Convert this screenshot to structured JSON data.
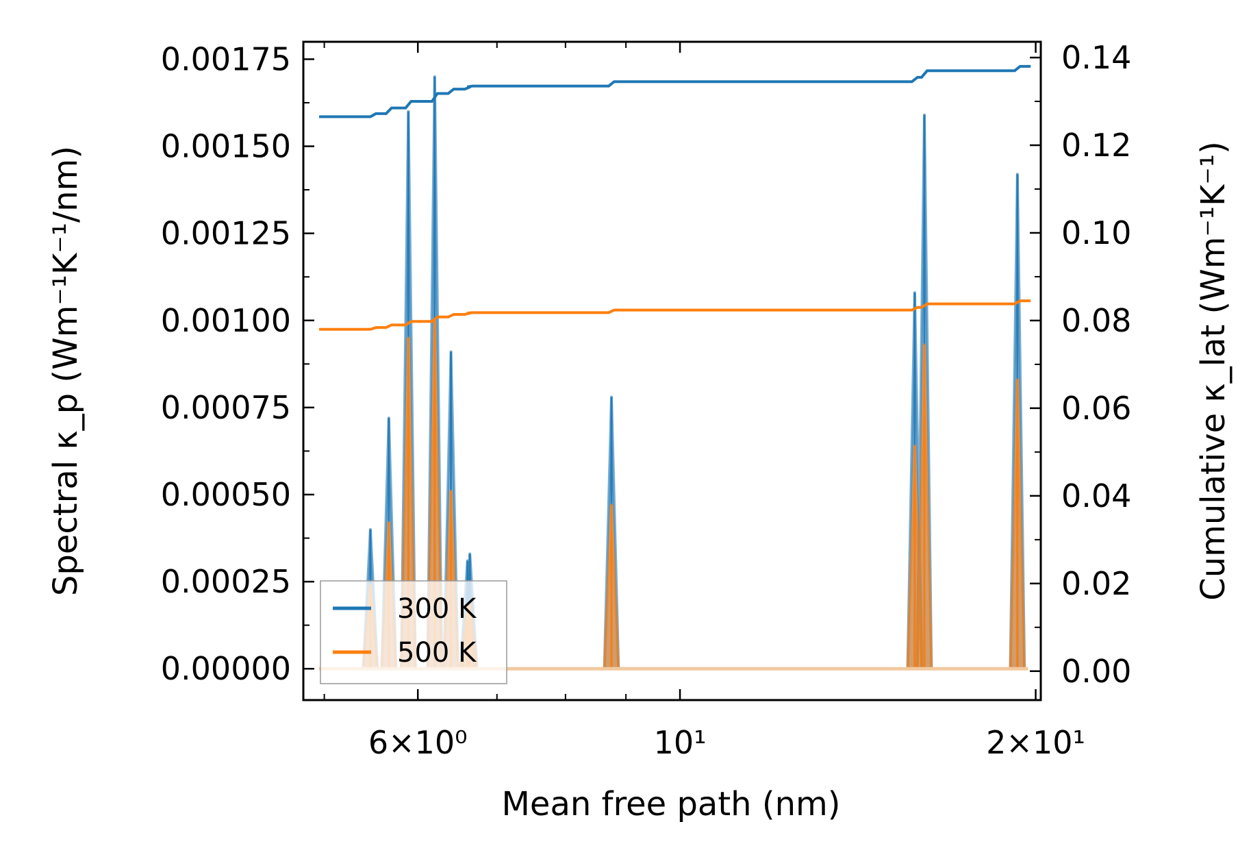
{
  "chart_data": {
    "type": "line",
    "title": "",
    "xlabel": "Mean free path (nm)",
    "ylabel": "Spectral κ_p (Wm⁻¹K⁻¹/nm)",
    "y2label": "Cumulative κ_lat (Wm⁻¹K⁻¹)",
    "xscale": "log",
    "xlim": [
      4.8,
      20.2
    ],
    "ylim": [
      -9e-05,
      0.0018
    ],
    "y2lim": [
      -0.0066,
      0.1436
    ],
    "x_tick_labels": [
      "6×10⁰",
      "10¹",
      "2×10¹"
    ],
    "x_tick_values": [
      6,
      10,
      20
    ],
    "y_tick_labels": [
      "0.00000",
      "0.00025",
      "0.00050",
      "0.00075",
      "0.00100",
      "0.00125",
      "0.00150",
      "0.00175"
    ],
    "y_tick_values": [
      0,
      0.00025,
      0.0005,
      0.00075,
      0.001,
      0.00125,
      0.0015,
      0.00175
    ],
    "y2_tick_labels": [
      "0.00",
      "0.02",
      "0.04",
      "0.06",
      "0.08",
      "0.10",
      "0.12",
      "0.14"
    ],
    "y2_tick_values": [
      0,
      0.02,
      0.04,
      0.06,
      0.08,
      0.1,
      0.12,
      0.14
    ],
    "legend": {
      "placement": "lower-left",
      "entries": [
        "300 K",
        "500 K"
      ]
    },
    "grid": false,
    "series": [
      {
        "name": "300 K",
        "color": "#1f77b4",
        "peaks": [
          {
            "x": 5.47,
            "y": 0.0004
          },
          {
            "x": 5.67,
            "y": 0.00072
          },
          {
            "x": 5.89,
            "y": 0.0016
          },
          {
            "x": 6.2,
            "y": 0.0017
          },
          {
            "x": 6.4,
            "y": 0.00091
          },
          {
            "x": 6.61,
            "y": 0.00031
          },
          {
            "x": 6.64,
            "y": 0.00033
          },
          {
            "x": 8.75,
            "y": 0.00078
          },
          {
            "x": 15.8,
            "y": 0.00108
          },
          {
            "x": 16.1,
            "y": 0.00159
          },
          {
            "x": 19.3,
            "y": 0.00142
          }
        ],
        "cumulative": [
          [
            4.95,
            0.1265
          ],
          [
            5.4,
            0.1265
          ],
          [
            5.5,
            0.1272
          ],
          [
            5.67,
            0.1285
          ],
          [
            5.89,
            0.13
          ],
          [
            6.2,
            0.1318
          ],
          [
            6.4,
            0.1328
          ],
          [
            6.61,
            0.1333
          ],
          [
            6.64,
            0.1335
          ],
          [
            8.75,
            0.1345
          ],
          [
            15.8,
            0.1355
          ],
          [
            16.1,
            0.137
          ],
          [
            19.3,
            0.138
          ],
          [
            19.7,
            0.138
          ]
        ]
      },
      {
        "name": "500 K",
        "color": "#ff7f0e",
        "peaks": [
          {
            "x": 5.47,
            "y": 0.00024
          },
          {
            "x": 5.67,
            "y": 0.00042
          },
          {
            "x": 5.89,
            "y": 0.00095
          },
          {
            "x": 6.2,
            "y": 0.001
          },
          {
            "x": 6.4,
            "y": 0.00051
          },
          {
            "x": 6.61,
            "y": 0.00018
          },
          {
            "x": 6.64,
            "y": 0.00019
          },
          {
            "x": 8.75,
            "y": 0.00047
          },
          {
            "x": 15.8,
            "y": 0.00064
          },
          {
            "x": 16.1,
            "y": 0.00093
          },
          {
            "x": 19.3,
            "y": 0.00083
          }
        ],
        "cumulative": [
          [
            4.95,
            0.078
          ],
          [
            5.4,
            0.078
          ],
          [
            5.5,
            0.0784
          ],
          [
            5.67,
            0.079
          ],
          [
            5.89,
            0.0798
          ],
          [
            6.2,
            0.0808
          ],
          [
            6.4,
            0.0814
          ],
          [
            6.61,
            0.0817
          ],
          [
            6.64,
            0.0818
          ],
          [
            8.75,
            0.0824
          ],
          [
            15.8,
            0.083
          ],
          [
            16.1,
            0.0838
          ],
          [
            19.3,
            0.0845
          ],
          [
            19.7,
            0.0845
          ]
        ]
      }
    ]
  }
}
